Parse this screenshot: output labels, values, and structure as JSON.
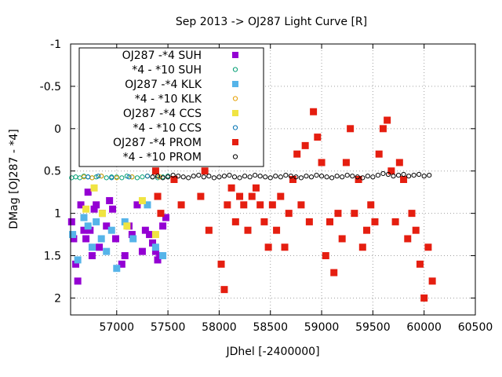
{
  "chart_data": {
    "type": "scatter",
    "title": "Sep 2013 ->   OJ287 Light Curve [R]",
    "xlabel": "JDhel [-2400000]",
    "ylabel": "DMag [OJ287 - *4]",
    "xlim": [
      56550,
      60500
    ],
    "ylim": [
      2.2,
      -1.0
    ],
    "y_inverted": true,
    "grid": true,
    "legend_position": "top-left",
    "x_ticks": [
      "57000",
      "57500",
      "58000",
      "58500",
      "59000",
      "59500",
      "60000",
      "60500"
    ],
    "y_ticks": [
      "-1",
      "-0.5",
      "0",
      "0.5",
      "1",
      "1.5",
      "2"
    ],
    "series": [
      {
        "name": "OJ287 -*4 SUH",
        "color": "#9400d3",
        "marker": "filled-square",
        "x": [
          56560,
          56580,
          56600,
          56620,
          56650,
          56680,
          56700,
          56720,
          56740,
          56760,
          56780,
          56800,
          56830,
          56860,
          56900,
          56930,
          56960,
          56990,
          57050,
          57080,
          57120,
          57150,
          57200,
          57250,
          57280,
          57320,
          57350,
          57380,
          57400,
          57420,
          57450,
          57480
        ],
        "values": [
          1.1,
          1.3,
          1.6,
          1.8,
          0.9,
          1.2,
          1.3,
          0.75,
          1.2,
          1.5,
          0.95,
          0.9,
          1.4,
          1.0,
          1.15,
          0.85,
          0.95,
          1.3,
          1.6,
          1.5,
          1.15,
          1.25,
          0.9,
          1.45,
          1.2,
          1.25,
          1.35,
          1.45,
          1.55,
          1.5,
          1.15,
          1.05
        ]
      },
      {
        "name": "*4 - *10 SUH",
        "color": "#009e73",
        "marker": "open-circle",
        "x": [
          56560,
          56600,
          56640,
          56680,
          56720,
          56760,
          56800,
          56850,
          56900,
          56950,
          57000,
          57050,
          57100,
          57150,
          57200,
          57250,
          57300,
          57350,
          57400,
          57450,
          57500
        ],
        "values": [
          0.58,
          0.57,
          0.58,
          0.56,
          0.57,
          0.58,
          0.57,
          0.56,
          0.58,
          0.57,
          0.57,
          0.58,
          0.56,
          0.57,
          0.58,
          0.57,
          0.56,
          0.57,
          0.58,
          0.57,
          0.56
        ]
      },
      {
        "name": "OJ287 -*4 KLK",
        "color": "#56b4e9",
        "marker": "filled-square",
        "x": [
          56570,
          56620,
          56680,
          56720,
          56760,
          56800,
          56850,
          56900,
          56950,
          57000,
          57080,
          57160,
          57300,
          57380,
          57450
        ],
        "values": [
          1.25,
          1.55,
          1.05,
          1.15,
          1.4,
          1.1,
          1.3,
          1.45,
          1.2,
          1.65,
          1.1,
          1.3,
          0.9,
          1.4,
          1.5
        ]
      },
      {
        "name": "*4 - *10 KLK",
        "color": "#e69f00",
        "marker": "open-circle",
        "x": [
          56680,
          56760,
          56850,
          57000,
          57150,
          57300,
          57420
        ],
        "values": [
          0.57,
          0.58,
          0.56,
          0.58,
          0.57,
          0.56,
          0.57
        ]
      },
      {
        "name": "OJ287 -*4 CCS",
        "color": "#f0e442",
        "marker": "filled-square",
        "x": [
          56700,
          56780,
          56860,
          57100,
          57250,
          57380
        ],
        "values": [
          0.95,
          0.7,
          1.0,
          1.15,
          0.85,
          1.25
        ]
      },
      {
        "name": "*4 - *10 CCS",
        "color": "#0072b2",
        "marker": "open-circle",
        "x": [
          56720,
          56820,
          56950,
          57120,
          57300
        ],
        "values": [
          0.57,
          0.56,
          0.58,
          0.57,
          0.56
        ]
      },
      {
        "name": "OJ287 -*4 PROM",
        "color": "#e51e10",
        "marker": "filled-square",
        "x": [
          57350,
          57380,
          57400,
          57430,
          57460,
          57500,
          57530,
          57560,
          57600,
          57630,
          57660,
          57700,
          57740,
          57780,
          57820,
          57860,
          57900,
          57940,
          57980,
          58020,
          58050,
          58080,
          58120,
          58160,
          58200,
          58240,
          58280,
          58320,
          58360,
          58400,
          58440,
          58480,
          58520,
          58560,
          58600,
          58640,
          58680,
          58720,
          58760,
          58800,
          58840,
          58880,
          58920,
          58960,
          59000,
          59040,
          59080,
          59120,
          59160,
          59200,
          59240,
          59280,
          59320,
          59360,
          59400,
          59440,
          59480,
          59520,
          59560,
          59600,
          59640,
          59680,
          59720,
          59760,
          59800,
          59840,
          59880,
          59920,
          59960,
          60000,
          60040,
          60080
        ],
        "values": [
          0.2,
          0.5,
          0.8,
          1.0,
          0.4,
          0.2,
          -0.3,
          0.6,
          -0.5,
          0.9,
          -0.6,
          -0.2,
          0.3,
          0.0,
          0.8,
          0.5,
          1.2,
          0.4,
          0.3,
          1.6,
          1.9,
          0.9,
          0.7,
          1.1,
          0.8,
          0.9,
          1.2,
          0.8,
          0.7,
          0.9,
          1.1,
          1.4,
          0.9,
          1.2,
          0.8,
          1.4,
          1.0,
          0.6,
          0.3,
          0.9,
          0.2,
          1.1,
          -0.2,
          0.1,
          0.4,
          1.5,
          1.1,
          1.7,
          1.0,
          1.3,
          0.4,
          0.0,
          1.0,
          0.6,
          1.4,
          1.2,
          0.9,
          1.1,
          0.3,
          0.0,
          -0.1,
          0.5,
          1.1,
          0.4,
          0.6,
          1.3,
          1.0,
          1.2,
          1.6,
          2.0,
          1.4,
          1.8
        ]
      },
      {
        "name": "*4 - *10 PROM",
        "color": "#000000",
        "marker": "open-circle",
        "x": [
          57350,
          57400,
          57450,
          57500,
          57550,
          57600,
          57650,
          57700,
          57750,
          57800,
          57850,
          57900,
          57950,
          58000,
          58050,
          58100,
          58150,
          58200,
          58250,
          58300,
          58350,
          58400,
          58450,
          58500,
          58550,
          58600,
          58650,
          58700,
          58750,
          58800,
          58850,
          58900,
          58950,
          59000,
          59050,
          59100,
          59150,
          59200,
          59250,
          59300,
          59350,
          59400,
          59450,
          59500,
          59550,
          59600,
          59650,
          59700,
          59750,
          59800,
          59850,
          59900,
          59950,
          60000,
          60050
        ],
        "values": [
          0.57,
          0.56,
          0.58,
          0.57,
          0.55,
          0.56,
          0.57,
          0.58,
          0.56,
          0.55,
          0.57,
          0.56,
          0.58,
          0.57,
          0.56,
          0.55,
          0.57,
          0.58,
          0.56,
          0.57,
          0.55,
          0.56,
          0.57,
          0.58,
          0.56,
          0.57,
          0.55,
          0.56,
          0.57,
          0.58,
          0.56,
          0.57,
          0.55,
          0.56,
          0.57,
          0.58,
          0.56,
          0.57,
          0.55,
          0.56,
          0.57,
          0.58,
          0.56,
          0.57,
          0.55,
          0.53,
          0.54,
          0.56,
          0.55,
          0.54,
          0.56,
          0.55,
          0.54,
          0.56,
          0.55
        ]
      }
    ]
  }
}
